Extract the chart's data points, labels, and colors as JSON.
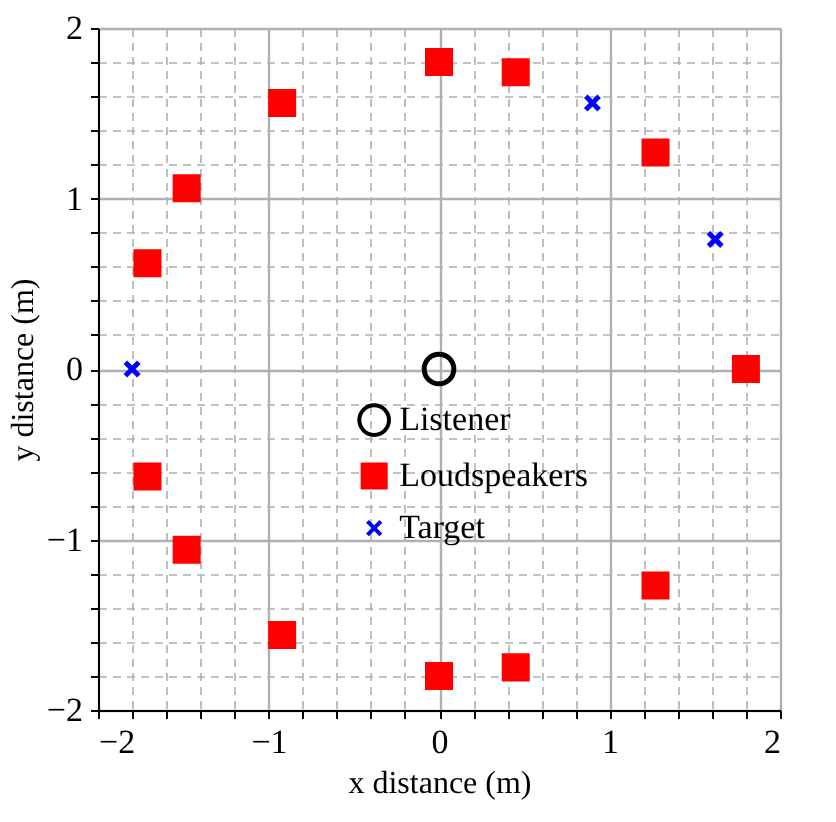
{
  "chart_data": {
    "type": "scatter",
    "xlabel": "x distance (m)",
    "ylabel": "y distance (m)",
    "xlim": [
      -2,
      2
    ],
    "ylim": [
      -2,
      2
    ],
    "xticks": [
      -2,
      {
        "value": -1.8,
        "label": null
      },
      {
        "value": -1.6,
        "label": null
      },
      {
        "value": -1.4,
        "label": null
      },
      {
        "value": -1.2,
        "label": null
      },
      -1,
      {
        "value": -0.8,
        "label": null
      },
      {
        "value": -0.6,
        "label": null
      },
      {
        "value": -0.4,
        "label": null
      },
      {
        "value": -0.2,
        "label": null
      },
      0,
      {
        "value": 0.2,
        "label": null
      },
      {
        "value": 0.4,
        "label": null
      },
      {
        "value": 0.6,
        "label": null
      },
      {
        "value": 0.8,
        "label": null
      },
      1,
      {
        "value": 1.2,
        "label": null
      },
      {
        "value": 1.4,
        "label": null
      },
      {
        "value": 1.6,
        "label": null
      },
      {
        "value": 1.8,
        "label": null
      },
      2
    ],
    "yticks": [
      -2,
      {
        "value": -1.8,
        "label": null
      },
      {
        "value": -1.6,
        "label": null
      },
      {
        "value": -1.4,
        "label": null
      },
      {
        "value": -1.2,
        "label": null
      },
      -1,
      {
        "value": -0.8,
        "label": null
      },
      {
        "value": -0.6,
        "label": null
      },
      {
        "value": -0.4,
        "label": null
      },
      {
        "value": -0.2,
        "label": null
      },
      0,
      {
        "value": 0.2,
        "label": null
      },
      {
        "value": 0.4,
        "label": null
      },
      {
        "value": 0.6,
        "label": null
      },
      {
        "value": 0.8,
        "label": null
      },
      1,
      {
        "value": 1.2,
        "label": null
      },
      {
        "value": 1.4,
        "label": null
      },
      {
        "value": 1.6,
        "label": null
      },
      {
        "value": 1.8,
        "label": null
      },
      2
    ],
    "grid": true,
    "legend": "bottom",
    "series": [
      {
        "name": "Listener",
        "color": "#000000",
        "marker": "circle",
        "x": [
          0
        ],
        "values": [
          0
        ]
      },
      {
        "name": "Loudspeakers",
        "color": "#ff0000",
        "marker": "square",
        "x": [
          0,
          0.45,
          1.27,
          1.8,
          1.27,
          0.45,
          0,
          -0.92,
          -1.48,
          -1.71,
          -1.71,
          -1.48,
          -0.92
        ],
        "values": [
          1.8,
          1.74,
          1.27,
          0,
          -1.27,
          -1.75,
          -1.8,
          -1.56,
          -1.06,
          -0.63,
          0.62,
          1.06,
          1.56
        ]
      },
      {
        "name": "Target",
        "color": "#0000ff",
        "marker": "cross",
        "x": [
          -1.8,
          0.9,
          1.62
        ],
        "values": [
          0,
          1.56,
          0.76
        ]
      }
    ]
  }
}
